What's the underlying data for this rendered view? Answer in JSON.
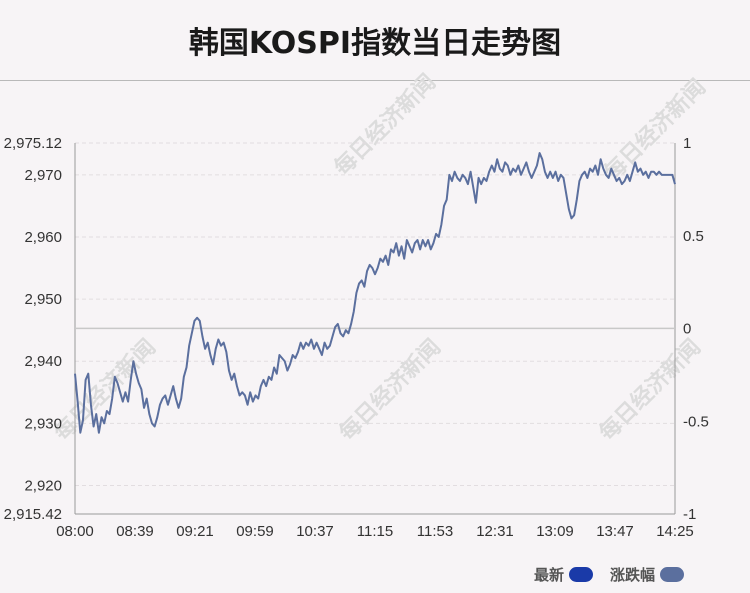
{
  "title": "韩国KOSPI指数当日走势图",
  "watermark": "每日经济新闻",
  "legend": {
    "latest_label": "最新",
    "latest_color": "#1a3aa8",
    "change_label": "涨跌幅",
    "change_color": "#5b6f9e"
  },
  "chart_data": {
    "type": "line",
    "title": "韩国KOSPI指数当日走势图",
    "xlabel": "",
    "ylabel": "",
    "ylim": [
      2915.42,
      2975.12
    ],
    "y_ticks": [
      "2,975.12",
      "2,970",
      "2,960",
      "2,950",
      "2,940",
      "2,930",
      "2,920",
      "2,915.42"
    ],
    "y_tick_values": [
      2975.12,
      2970,
      2960,
      2950,
      2940,
      2930,
      2920,
      2915.42
    ],
    "right_axis_ticks": [
      "1",
      "0.5",
      "0",
      "-0.5",
      "-1"
    ],
    "right_axis_values": [
      1,
      0.5,
      0,
      -0.5,
      -1
    ],
    "right_ylim": [
      -1,
      1
    ],
    "x_ticks": [
      "08:00",
      "08:39",
      "09:21",
      "09:59",
      "10:37",
      "11:15",
      "11:53",
      "12:31",
      "13:09",
      "13:47",
      "14:25"
    ],
    "reference_line": 2945.3,
    "grid": true,
    "line_color": "#5b6f9e",
    "series": [
      {
        "name": "最新",
        "points": [
          [
            0,
            2938.0
          ],
          [
            1,
            2933.5
          ],
          [
            2,
            2928.5
          ],
          [
            3,
            2930.5
          ],
          [
            4,
            2937.0
          ],
          [
            5,
            2938.0
          ],
          [
            6,
            2933.0
          ],
          [
            7,
            2929.5
          ],
          [
            8,
            2931.5
          ],
          [
            9,
            2928.5
          ],
          [
            10,
            2931.0
          ],
          [
            11,
            2930.0
          ],
          [
            12,
            2932.0
          ],
          [
            13,
            2931.5
          ],
          [
            14,
            2934.0
          ],
          [
            15,
            2937.5
          ],
          [
            16,
            2936.5
          ],
          [
            17,
            2935.0
          ],
          [
            18,
            2933.5
          ],
          [
            19,
            2935.0
          ],
          [
            20,
            2933.5
          ],
          [
            21,
            2937.0
          ],
          [
            22,
            2940.0
          ],
          [
            23,
            2938.0
          ],
          [
            24,
            2936.5
          ],
          [
            25,
            2935.5
          ],
          [
            26,
            2932.5
          ],
          [
            27,
            2934.0
          ],
          [
            28,
            2931.5
          ],
          [
            29,
            2930.0
          ],
          [
            30,
            2929.5
          ],
          [
            31,
            2931.0
          ],
          [
            32,
            2933.0
          ],
          [
            33,
            2934.0
          ],
          [
            34,
            2934.5
          ],
          [
            35,
            2933.0
          ],
          [
            36,
            2934.5
          ],
          [
            37,
            2936.0
          ],
          [
            38,
            2934.0
          ],
          [
            39,
            2932.5
          ],
          [
            40,
            2934.0
          ],
          [
            41,
            2937.5
          ],
          [
            42,
            2939.0
          ],
          [
            43,
            2942.5
          ],
          [
            44,
            2944.5
          ],
          [
            45,
            2946.5
          ],
          [
            46,
            2947.0
          ],
          [
            47,
            2946.5
          ],
          [
            48,
            2944.0
          ],
          [
            49,
            2942.0
          ],
          [
            50,
            2943.0
          ],
          [
            51,
            2941.0
          ],
          [
            52,
            2939.5
          ],
          [
            53,
            2942.0
          ],
          [
            54,
            2943.5
          ],
          [
            55,
            2942.5
          ],
          [
            56,
            2943.0
          ],
          [
            57,
            2941.5
          ],
          [
            58,
            2938.5
          ],
          [
            59,
            2937.0
          ],
          [
            60,
            2938.0
          ],
          [
            61,
            2936.0
          ],
          [
            62,
            2934.5
          ],
          [
            63,
            2935.0
          ],
          [
            64,
            2934.5
          ],
          [
            65,
            2933.0
          ],
          [
            66,
            2935.0
          ],
          [
            67,
            2933.5
          ],
          [
            68,
            2934.5
          ],
          [
            69,
            2934.0
          ],
          [
            70,
            2936.0
          ],
          [
            71,
            2937.0
          ],
          [
            72,
            2936.0
          ],
          [
            73,
            2937.5
          ],
          [
            74,
            2937.0
          ],
          [
            75,
            2939.0
          ],
          [
            76,
            2938.0
          ],
          [
            77,
            2941.0
          ],
          [
            78,
            2940.5
          ],
          [
            79,
            2940.0
          ],
          [
            80,
            2938.5
          ],
          [
            81,
            2939.5
          ],
          [
            82,
            2941.0
          ],
          [
            83,
            2940.5
          ],
          [
            84,
            2941.5
          ],
          [
            85,
            2943.0
          ],
          [
            86,
            2942.0
          ],
          [
            87,
            2943.0
          ],
          [
            88,
            2942.5
          ],
          [
            89,
            2943.5
          ],
          [
            90,
            2942.0
          ],
          [
            91,
            2943.0
          ],
          [
            92,
            2942.0
          ],
          [
            93,
            2941.0
          ],
          [
            94,
            2943.0
          ],
          [
            95,
            2942.0
          ],
          [
            96,
            2942.5
          ],
          [
            97,
            2944.0
          ],
          [
            98,
            2945.5
          ],
          [
            99,
            2946.0
          ],
          [
            100,
            2944.5
          ],
          [
            101,
            2944.0
          ],
          [
            102,
            2945.0
          ],
          [
            103,
            2944.5
          ],
          [
            104,
            2946.0
          ],
          [
            105,
            2948.0
          ],
          [
            106,
            2951.0
          ],
          [
            107,
            2952.5
          ],
          [
            108,
            2953.0
          ],
          [
            109,
            2952.0
          ],
          [
            110,
            2954.5
          ],
          [
            111,
            2955.5
          ],
          [
            112,
            2955.0
          ],
          [
            113,
            2954.0
          ],
          [
            114,
            2955.0
          ],
          [
            115,
            2956.5
          ],
          [
            116,
            2956.0
          ],
          [
            117,
            2957.0
          ],
          [
            118,
            2955.5
          ],
          [
            119,
            2958.0
          ],
          [
            120,
            2957.5
          ],
          [
            121,
            2959.0
          ],
          [
            122,
            2957.0
          ],
          [
            123,
            2958.5
          ],
          [
            124,
            2956.5
          ],
          [
            125,
            2959.5
          ],
          [
            126,
            2958.5
          ],
          [
            127,
            2957.5
          ],
          [
            128,
            2959.0
          ],
          [
            129,
            2959.5
          ],
          [
            130,
            2958.0
          ],
          [
            131,
            2959.5
          ],
          [
            132,
            2958.5
          ],
          [
            133,
            2959.5
          ],
          [
            134,
            2958.0
          ],
          [
            135,
            2959.0
          ],
          [
            136,
            2960.5
          ],
          [
            137,
            2960.0
          ],
          [
            138,
            2962.0
          ],
          [
            139,
            2965.0
          ],
          [
            140,
            2966.0
          ],
          [
            141,
            2970.0
          ],
          [
            142,
            2969.0
          ],
          [
            143,
            2970.5
          ],
          [
            144,
            2969.5
          ],
          [
            145,
            2969.0
          ],
          [
            146,
            2970.0
          ],
          [
            147,
            2969.5
          ],
          [
            148,
            2968.5
          ],
          [
            149,
            2970.5
          ],
          [
            150,
            2968.0
          ],
          [
            151,
            2965.5
          ],
          [
            152,
            2969.5
          ],
          [
            153,
            2968.5
          ],
          [
            154,
            2969.5
          ],
          [
            155,
            2969.0
          ],
          [
            156,
            2970.5
          ],
          [
            157,
            2971.5
          ],
          [
            158,
            2970.5
          ],
          [
            159,
            2972.5
          ],
          [
            160,
            2971.0
          ],
          [
            161,
            2970.5
          ],
          [
            162,
            2972.0
          ],
          [
            163,
            2971.5
          ],
          [
            164,
            2970.0
          ],
          [
            165,
            2971.0
          ],
          [
            166,
            2970.5
          ],
          [
            167,
            2971.5
          ],
          [
            168,
            2970.0
          ],
          [
            169,
            2971.0
          ],
          [
            170,
            2972.0
          ],
          [
            171,
            2970.5
          ],
          [
            172,
            2969.5
          ],
          [
            173,
            2970.5
          ],
          [
            174,
            2971.5
          ],
          [
            175,
            2973.5
          ],
          [
            176,
            2972.5
          ],
          [
            177,
            2970.5
          ],
          [
            178,
            2969.5
          ],
          [
            179,
            2970.5
          ],
          [
            180,
            2969.5
          ],
          [
            181,
            2970.5
          ],
          [
            182,
            2969.0
          ],
          [
            183,
            2970.0
          ],
          [
            184,
            2969.5
          ],
          [
            185,
            2967.0
          ],
          [
            186,
            2964.5
          ],
          [
            187,
            2963.0
          ],
          [
            188,
            2963.5
          ],
          [
            189,
            2966.0
          ],
          [
            190,
            2969.0
          ],
          [
            191,
            2970.0
          ],
          [
            192,
            2970.5
          ],
          [
            193,
            2969.5
          ],
          [
            194,
            2971.0
          ],
          [
            195,
            2970.5
          ],
          [
            196,
            2971.5
          ],
          [
            197,
            2970.0
          ],
          [
            198,
            2972.5
          ],
          [
            199,
            2971.0
          ],
          [
            200,
            2970.0
          ],
          [
            201,
            2969.5
          ],
          [
            202,
            2971.0
          ],
          [
            203,
            2970.0
          ],
          [
            204,
            2969.0
          ],
          [
            205,
            2969.5
          ],
          [
            206,
            2968.5
          ],
          [
            207,
            2969.0
          ],
          [
            208,
            2970.0
          ],
          [
            209,
            2969.0
          ],
          [
            210,
            2970.5
          ],
          [
            211,
            2972.0
          ],
          [
            212,
            2970.5
          ],
          [
            213,
            2971.0
          ],
          [
            214,
            2970.0
          ],
          [
            215,
            2970.5
          ],
          [
            216,
            2969.5
          ],
          [
            217,
            2970.5
          ],
          [
            218,
            2970.5
          ],
          [
            219,
            2970.0
          ],
          [
            220,
            2970.5
          ],
          [
            221,
            2970.0
          ],
          [
            222,
            2970.0
          ],
          [
            223,
            2970.0
          ],
          [
            224,
            2970.0
          ],
          [
            225,
            2970.0
          ],
          [
            226,
            2968.5
          ]
        ]
      }
    ]
  }
}
